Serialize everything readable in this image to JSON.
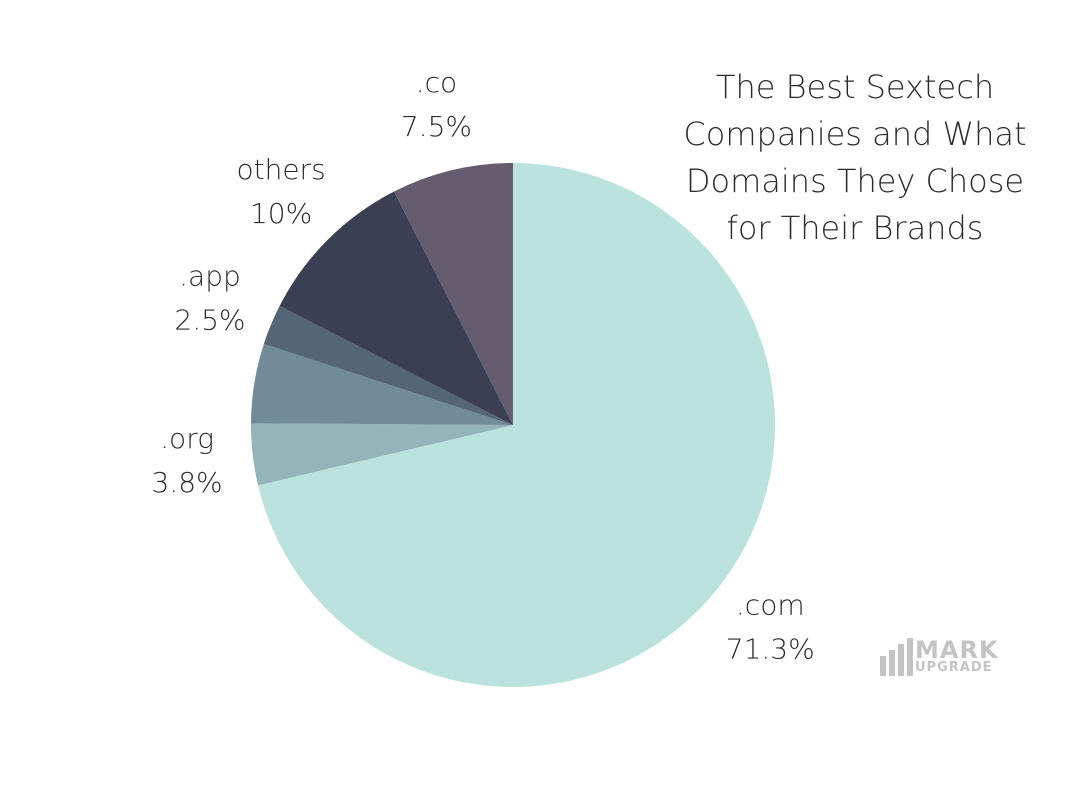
{
  "chart_data": {
    "type": "pie",
    "title": "The Best Sextech Companies and What Domains They Chose for Their Brands",
    "categories": [
      ".com",
      ".org",
      null,
      ".app",
      "others",
      ".co"
    ],
    "values": [
      71.3,
      3.8,
      4.9,
      2.5,
      10,
      7.5
    ],
    "value_labels": [
      "71.3%",
      "3.8%",
      null,
      "2.5%",
      "10%",
      "7.5%"
    ],
    "colors": [
      "#bce2dd",
      "#93b4b8",
      "#718c98",
      "#566576",
      "#3a3f54",
      "#655c70"
    ]
  },
  "watermark": {
    "line1": "MARK",
    "line2": "UPGRADE"
  }
}
